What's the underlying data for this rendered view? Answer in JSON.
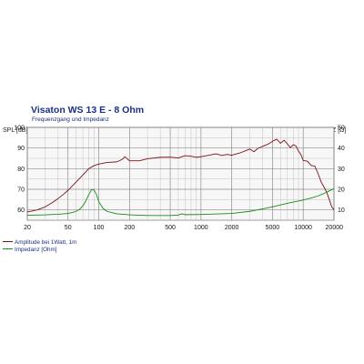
{
  "chart_data": {
    "type": "line",
    "title": "Visaton WS 13 E - 8 Ohm",
    "subtitle": "Frequenzgang und Impedanz",
    "xlabel": "",
    "x_scale": "log",
    "xlim": [
      20,
      20000
    ],
    "x_ticks": [
      "20",
      "50",
      "100",
      "200",
      "500",
      "1000",
      "2000",
      "5000",
      "10000",
      "20000"
    ],
    "y_left_label": "SPL [dB]",
    "y_left_lim": [
      55,
      100
    ],
    "y_left_ticks": [
      "100",
      "90",
      "80",
      "70",
      "60"
    ],
    "y_right_label": "Z [Ω]",
    "y_right_lim": [
      5,
      50
    ],
    "y_right_ticks": [
      "50",
      "40",
      "30",
      "20",
      "10"
    ],
    "grid": true,
    "series": [
      {
        "name": "Amplitude bei 1Watt, 1m",
        "color": "#7a1218",
        "axis": "left",
        "points": [
          [
            20,
            59
          ],
          [
            25,
            60
          ],
          [
            30,
            61.5
          ],
          [
            35,
            63.5
          ],
          [
            40,
            65.5
          ],
          [
            45,
            67.5
          ],
          [
            50,
            69.5
          ],
          [
            60,
            73.5
          ],
          [
            70,
            77
          ],
          [
            80,
            80
          ],
          [
            90,
            81.5
          ],
          [
            100,
            82.2
          ],
          [
            120,
            83
          ],
          [
            150,
            83.3
          ],
          [
            170,
            84.5
          ],
          [
            180,
            85.8
          ],
          [
            200,
            83.8
          ],
          [
            250,
            83.8
          ],
          [
            300,
            84.8
          ],
          [
            400,
            85.5
          ],
          [
            500,
            85.6
          ],
          [
            600,
            85.2
          ],
          [
            700,
            86.3
          ],
          [
            800,
            86
          ],
          [
            900,
            85.5
          ],
          [
            1000,
            85.8
          ],
          [
            1200,
            86.5
          ],
          [
            1400,
            87.2
          ],
          [
            1600,
            86.4
          ],
          [
            1800,
            86.9
          ],
          [
            2000,
            86.5
          ],
          [
            2400,
            87.6
          ],
          [
            2800,
            88.9
          ],
          [
            3000,
            89.5
          ],
          [
            3300,
            88.2
          ],
          [
            3600,
            89.8
          ],
          [
            4000,
            90.8
          ],
          [
            4500,
            91.8
          ],
          [
            5000,
            93.2
          ],
          [
            5500,
            94.3
          ],
          [
            6000,
            92.3
          ],
          [
            6500,
            93.8
          ],
          [
            7000,
            92
          ],
          [
            7500,
            90.2
          ],
          [
            8000,
            91.6
          ],
          [
            8500,
            91
          ],
          [
            9000,
            88.5
          ],
          [
            9500,
            86.8
          ],
          [
            10000,
            84
          ],
          [
            11000,
            83.6
          ],
          [
            12000,
            81.5
          ],
          [
            13000,
            81.2
          ],
          [
            14000,
            77.5
          ],
          [
            15000,
            73.5
          ],
          [
            16000,
            71
          ],
          [
            17000,
            68.5
          ],
          [
            18000,
            65
          ],
          [
            19000,
            61.5
          ],
          [
            20000,
            60
          ]
        ]
      },
      {
        "name": "Impedanz [Ohm]",
        "color": "#1a8a1a",
        "axis": "right",
        "points": [
          [
            20,
            7.4
          ],
          [
            30,
            7.6
          ],
          [
            40,
            7.9
          ],
          [
            50,
            8.3
          ],
          [
            55,
            8.7
          ],
          [
            60,
            9.3
          ],
          [
            65,
            10.3
          ],
          [
            70,
            12
          ],
          [
            75,
            14.5
          ],
          [
            80,
            17.5
          ],
          [
            85,
            19.8
          ],
          [
            90,
            19.6
          ],
          [
            95,
            17.5
          ],
          [
            100,
            14
          ],
          [
            110,
            10.8
          ],
          [
            120,
            9.3
          ],
          [
            150,
            8.1
          ],
          [
            200,
            7.6
          ],
          [
            300,
            7.3
          ],
          [
            500,
            7.3
          ],
          [
            600,
            7.5
          ],
          [
            650,
            8.1
          ],
          [
            700,
            7.7
          ],
          [
            1000,
            7.8
          ],
          [
            2000,
            8.3
          ],
          [
            3000,
            9.3
          ],
          [
            4000,
            10.5
          ],
          [
            5000,
            11.5
          ],
          [
            6000,
            12.4
          ],
          [
            7000,
            13.2
          ],
          [
            8000,
            13.8
          ],
          [
            10000,
            14.8
          ],
          [
            12000,
            15.8
          ],
          [
            14000,
            16.8
          ],
          [
            16000,
            18
          ],
          [
            18000,
            19.2
          ],
          [
            20000,
            20.3
          ]
        ]
      }
    ]
  }
}
